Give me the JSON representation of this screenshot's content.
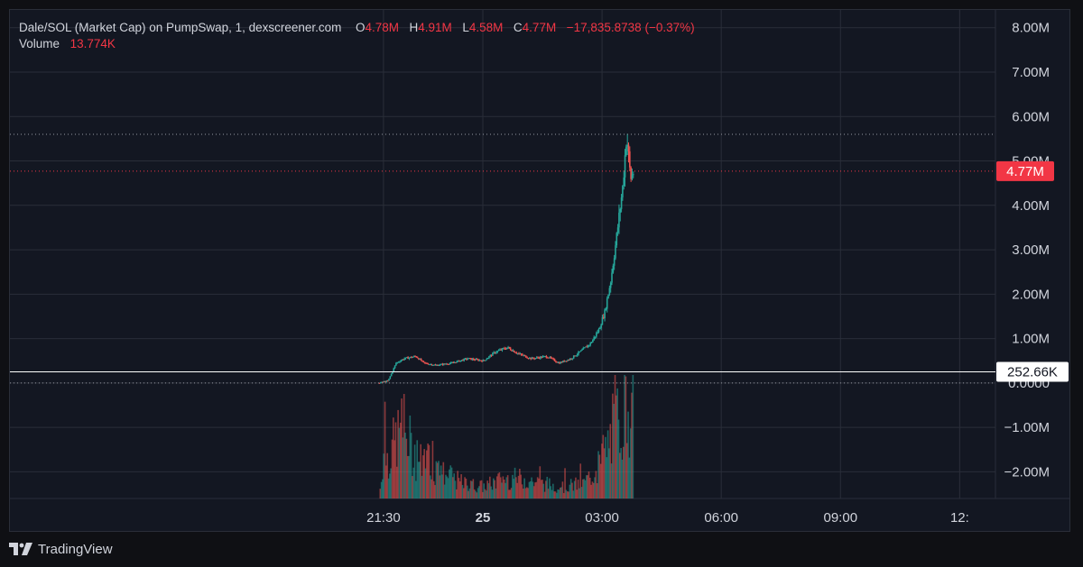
{
  "header": {
    "symbol": "Dale/SOL (Market Cap) on PumpSwap, 1, dexscreener.com",
    "o_label": "O",
    "o_value": "4.78M",
    "h_label": "H",
    "h_value": "4.91M",
    "l_label": "L",
    "l_value": "4.58M",
    "c_label": "C",
    "c_value": "4.77M",
    "change": "−17,835.8738 (−0.37%)",
    "volume_label": "Volume",
    "volume_value": "13.774K"
  },
  "footer": {
    "brand": "TradingView"
  },
  "colors": {
    "background": "#131722",
    "grid": "#2a2e39",
    "up": "#26a69a",
    "down": "#ef5350",
    "axis_text": "#d1d4dc",
    "price_tag": "#f23645"
  },
  "chart_data": {
    "type": "candlestick",
    "y_axis": {
      "ticks": [
        8,
        7,
        6,
        5,
        4,
        3,
        2,
        1,
        0,
        -1,
        -2
      ],
      "tick_labels": [
        "8.00M",
        "7.00M",
        "6.00M",
        "5.00M",
        "4.00M",
        "3.00M",
        "2.00M",
        "1.00M",
        "0.0000",
        "−1.00M",
        "−2.00M"
      ],
      "ylim": [
        -2.6,
        8.4
      ],
      "unit": "M"
    },
    "x_axis": {
      "tick_labels": [
        "21:30",
        "25",
        "03:00",
        "06:00",
        "09:00",
        "12:"
      ],
      "tick_hours": [
        21.5,
        24,
        27,
        30,
        33,
        36
      ],
      "xlim_hours": [
        12.1,
        36.9
      ]
    },
    "last_price": {
      "value": 4.77,
      "label": "4.77M"
    },
    "high_line": {
      "value": 5.6
    },
    "crosshair": {
      "value": 0.25266,
      "label": "252.66K"
    },
    "zero_line": {
      "value": 0
    },
    "price_path": [
      [
        21.35,
        0.0
      ],
      [
        21.6,
        0.05
      ],
      [
        21.8,
        0.45
      ],
      [
        22.0,
        0.55
      ],
      [
        22.3,
        0.6
      ],
      [
        22.5,
        0.45
      ],
      [
        22.8,
        0.4
      ],
      [
        23.2,
        0.45
      ],
      [
        23.6,
        0.55
      ],
      [
        24.0,
        0.5
      ],
      [
        24.3,
        0.7
      ],
      [
        24.6,
        0.8
      ],
      [
        24.9,
        0.65
      ],
      [
        25.2,
        0.55
      ],
      [
        25.6,
        0.6
      ],
      [
        25.9,
        0.45
      ],
      [
        26.2,
        0.55
      ],
      [
        26.5,
        0.75
      ],
      [
        26.7,
        0.9
      ],
      [
        26.9,
        1.2
      ],
      [
        27.05,
        1.6
      ],
      [
        27.2,
        2.3
      ],
      [
        27.35,
        3.3
      ],
      [
        27.5,
        4.4
      ],
      [
        27.6,
        5.6
      ],
      [
        27.7,
        4.6
      ],
      [
        27.78,
        4.77
      ]
    ],
    "volume_path": [
      [
        21.4,
        0.1
      ],
      [
        21.5,
        0.55
      ],
      [
        21.6,
        0.4
      ],
      [
        21.8,
        0.6
      ],
      [
        22.0,
        0.7
      ],
      [
        22.3,
        0.4
      ],
      [
        22.6,
        0.35
      ],
      [
        23.0,
        0.25
      ],
      [
        23.5,
        0.15
      ],
      [
        24.0,
        0.12
      ],
      [
        24.5,
        0.2
      ],
      [
        25.0,
        0.2
      ],
      [
        25.5,
        0.15
      ],
      [
        26.0,
        0.12
      ],
      [
        26.5,
        0.15
      ],
      [
        26.9,
        0.3
      ],
      [
        27.1,
        0.5
      ],
      [
        27.3,
        0.75
      ],
      [
        27.5,
        0.9
      ],
      [
        27.65,
        1.0
      ],
      [
        27.78,
        0.6
      ]
    ],
    "volume_max_value": "13.774K"
  }
}
